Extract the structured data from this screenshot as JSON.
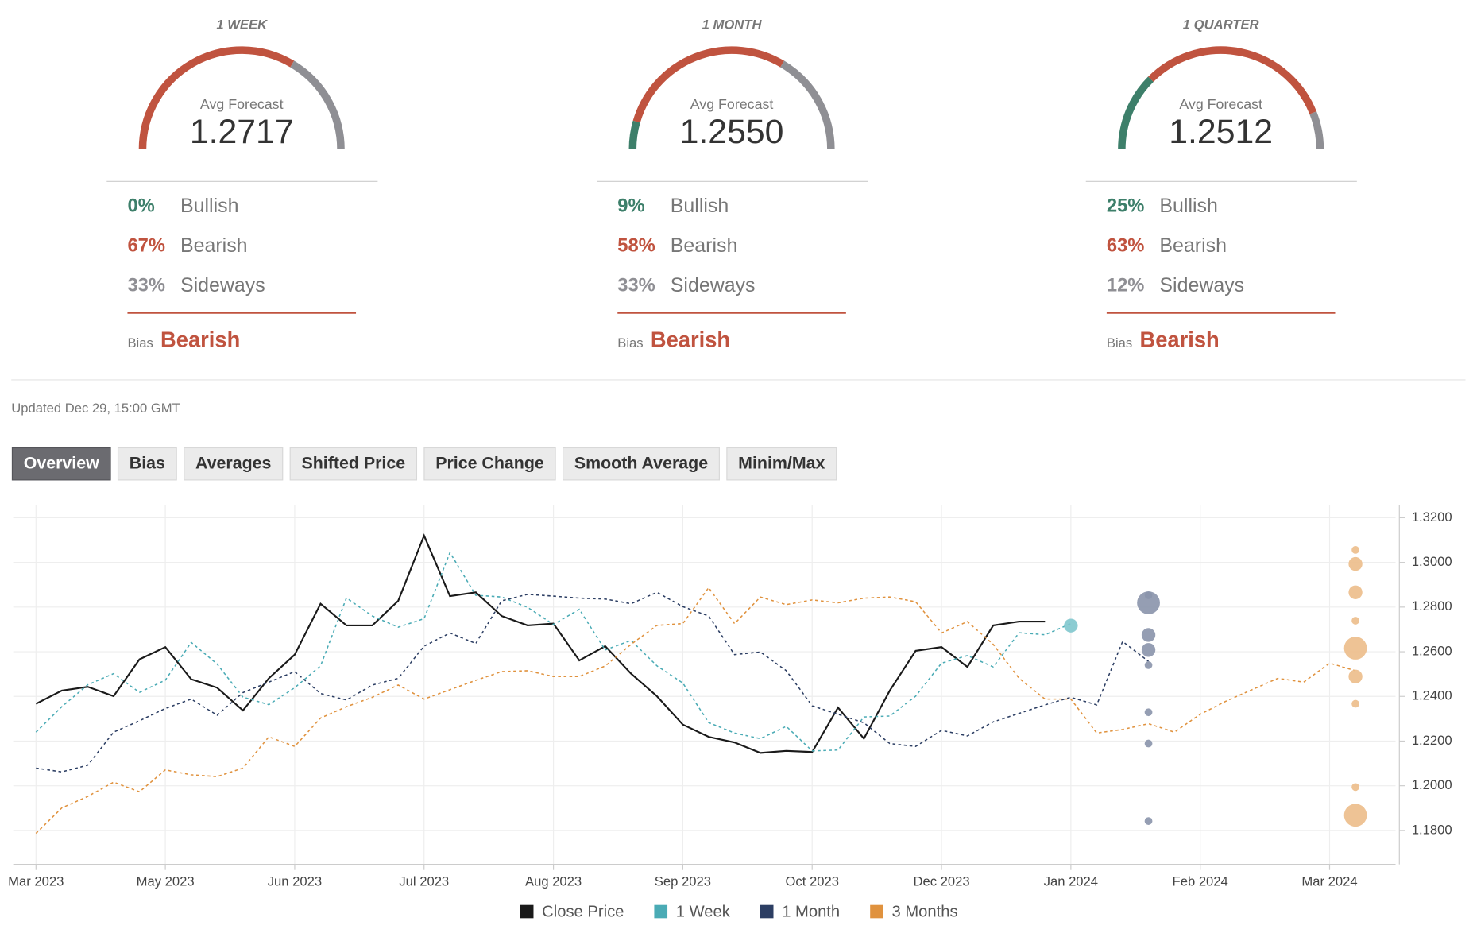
{
  "gauges": [
    {
      "title": "1 WEEK",
      "avg_label": "Avg Forecast",
      "avg": "1.2717",
      "rows": [
        {
          "value": 0,
          "label": "0%",
          "name": "Bullish",
          "color": "#3d7f6a"
        },
        {
          "value": 67,
          "label": "67%",
          "name": "Bearish",
          "color": "#c0533f"
        },
        {
          "value": 33,
          "label": "33%",
          "name": "Sideways",
          "color": "#8f8f94"
        }
      ],
      "bias_label": "Bias",
      "bias": "Bearish"
    },
    {
      "title": "1 MONTH",
      "avg_label": "Avg Forecast",
      "avg": "1.2550",
      "rows": [
        {
          "value": 9,
          "label": "9%",
          "name": "Bullish",
          "color": "#3d7f6a"
        },
        {
          "value": 58,
          "label": "58%",
          "name": "Bearish",
          "color": "#c0533f"
        },
        {
          "value": 33,
          "label": "33%",
          "name": "Sideways",
          "color": "#8f8f94"
        }
      ],
      "bias_label": "Bias",
      "bias": "Bearish"
    },
    {
      "title": "1 QUARTER",
      "avg_label": "Avg Forecast",
      "avg": "1.2512",
      "rows": [
        {
          "value": 25,
          "label": "25%",
          "name": "Bullish",
          "color": "#3d7f6a"
        },
        {
          "value": 63,
          "label": "63%",
          "name": "Bearish",
          "color": "#c0533f"
        },
        {
          "value": 12,
          "label": "12%",
          "name": "Sideways",
          "color": "#8f8f94"
        }
      ],
      "bias_label": "Bias",
      "bias": "Bearish"
    }
  ],
  "updated": "Updated Dec 29, 15:00 GMT",
  "tabs": [
    "Overview",
    "Bias",
    "Averages",
    "Shifted Price",
    "Price Change",
    "Smooth Average",
    "Minim/Max"
  ],
  "active_tab": 0,
  "chart_data": {
    "type": "line",
    "legend": "bottom",
    "grid": true,
    "x": [
      0,
      1,
      2,
      3,
      4,
      5,
      6,
      7,
      8,
      9,
      10,
      11,
      12,
      13,
      14,
      15,
      16,
      17,
      18,
      19,
      20,
      21,
      22,
      23,
      24,
      25,
      26,
      27,
      28,
      29,
      30,
      31,
      32,
      33,
      34,
      35,
      36,
      37,
      38,
      39,
      40,
      41,
      42,
      43,
      44,
      45,
      46,
      47,
      48,
      49,
      50,
      51
    ],
    "xlim": [
      -0.88,
      52.55
    ],
    "xticks": [
      {
        "value": 0,
        "label": "Mar 2023"
      },
      {
        "value": 5,
        "label": "May 2023"
      },
      {
        "value": 10,
        "label": "Jun 2023"
      },
      {
        "value": 15,
        "label": "Jul 2023"
      },
      {
        "value": 20,
        "label": "Aug 2023"
      },
      {
        "value": 25,
        "label": "Sep 2023"
      },
      {
        "value": 30,
        "label": "Oct 2023"
      },
      {
        "value": 35,
        "label": "Dec 2023"
      },
      {
        "value": 40,
        "label": "Jan 2024"
      },
      {
        "value": 45,
        "label": "Feb 2024"
      },
      {
        "value": 50,
        "label": "Mar 2024"
      }
    ],
    "ylim": [
      1.1648,
      1.3255
    ],
    "yticks": [
      {
        "value": 1.18,
        "label": "1.1800"
      },
      {
        "value": 1.2,
        "label": "1.2000"
      },
      {
        "value": 1.22,
        "label": "1.2200"
      },
      {
        "value": 1.24,
        "label": "1.2400"
      },
      {
        "value": 1.26,
        "label": "1.2600"
      },
      {
        "value": 1.28,
        "label": "1.2800"
      },
      {
        "value": 1.3,
        "label": "1.3000"
      },
      {
        "value": 1.32,
        "label": "1.3200"
      }
    ],
    "series": [
      {
        "name": "Close Price",
        "color": "#1a1a1a",
        "dashed": false,
        "values": [
          1.2367,
          1.2426,
          1.2443,
          1.2401,
          1.2566,
          1.2621,
          1.2477,
          1.2439,
          1.2337,
          1.2481,
          1.2587,
          1.2815,
          1.2718,
          1.2718,
          1.2828,
          1.312,
          1.2849,
          1.2866,
          1.276,
          1.2718,
          1.2726,
          1.2561,
          1.2625,
          1.2502,
          1.2401,
          1.2274,
          1.2219,
          1.2194,
          1.2147,
          1.2156,
          1.2151,
          1.235,
          1.2211,
          1.2426,
          1.2604,
          1.2621,
          1.2532,
          1.2718,
          1.2735,
          1.2735,
          null,
          null,
          null,
          null,
          null,
          null,
          null,
          null,
          null,
          null,
          null,
          null
        ]
      },
      {
        "name": "1 Week",
        "color": "#4aabb5",
        "dashed": true,
        "values": [
          1.224,
          1.2354,
          1.2452,
          1.2502,
          1.2418,
          1.2473,
          1.2642,
          1.2545,
          1.2397,
          1.2363,
          1.2439,
          1.2537,
          1.2841,
          1.276,
          1.271,
          1.2748,
          1.3044,
          1.2853,
          1.2845,
          1.2799,
          1.2722,
          1.279,
          1.2608,
          1.2651,
          1.2537,
          1.246,
          1.2283,
          1.2236,
          1.2211,
          1.2266,
          1.2156,
          1.216,
          1.2308,
          1.2312,
          1.2401,
          1.2549,
          1.2583,
          1.2532,
          1.2685,
          1.2676,
          1.2726,
          null,
          null,
          null,
          null,
          null,
          null,
          null,
          null,
          null,
          null,
          null
        ],
        "forecast_x": 40,
        "forecast_color": "#7fc6cd",
        "forecast_values": [
          1.2717
        ],
        "forecast_sizes": [
          3
        ]
      },
      {
        "name": "1 Month",
        "color": "#2c3e63",
        "dashed": true,
        "values": [
          1.2079,
          1.2062,
          1.2092,
          1.224,
          1.2291,
          1.2346,
          1.2388,
          1.2316,
          1.2417,
          1.2464,
          1.2511,
          1.2413,
          1.2384,
          1.2451,
          1.2481,
          1.2625,
          1.2684,
          1.2637,
          1.2828,
          1.2857,
          1.2849,
          1.284,
          1.2836,
          1.2815,
          1.2866,
          1.2802,
          1.276,
          1.2587,
          1.2599,
          1.2515,
          1.2358,
          1.232,
          1.2282,
          1.2189,
          1.2176,
          1.2248,
          1.2223,
          1.2286,
          1.2324,
          1.2362,
          1.2396,
          1.2362,
          1.2646,
          1.2557,
          null,
          null,
          null,
          null,
          null,
          null,
          null,
          null
        ],
        "forecast_x": 43,
        "forecast_color": "#8a93ab",
        "forecast_values": [
          1.2853,
          1.2819,
          1.2675,
          1.2608,
          1.254,
          1.2329,
          1.2189,
          1.1842
        ],
        "forecast_sizes": [
          1,
          6,
          3,
          3,
          1,
          1,
          1,
          1
        ]
      },
      {
        "name": "3 Months",
        "color": "#e0923e",
        "dashed": true,
        "values": [
          1.1787,
          1.1901,
          1.1952,
          1.2016,
          1.1973,
          1.2071,
          1.2049,
          1.2041,
          1.2079,
          1.2219,
          1.2176,
          1.2303,
          1.2354,
          1.2396,
          1.2451,
          1.2388,
          1.243,
          1.2472,
          1.2511,
          1.2515,
          1.2489,
          1.2489,
          1.2536,
          1.2633,
          1.2718,
          1.2726,
          1.2887,
          1.2726,
          1.2845,
          1.2811,
          1.2832,
          1.2819,
          1.284,
          1.2845,
          1.2824,
          1.2684,
          1.2735,
          1.2633,
          1.2481,
          1.2388,
          1.2388,
          1.2236,
          1.2252,
          1.2278,
          1.224,
          1.232,
          1.2379,
          1.243,
          1.2481,
          1.2464,
          1.2549,
          1.2515
        ],
        "forecast_x": 51,
        "forecast_color": "#ecbd8a",
        "forecast_values": [
          1.3056,
          1.2993,
          1.2866,
          1.2739,
          1.2616,
          1.2489,
          1.2367,
          1.1994,
          1.1868
        ],
        "forecast_sizes": [
          1,
          3,
          3,
          1,
          6,
          3,
          1,
          1,
          6
        ]
      }
    ]
  }
}
